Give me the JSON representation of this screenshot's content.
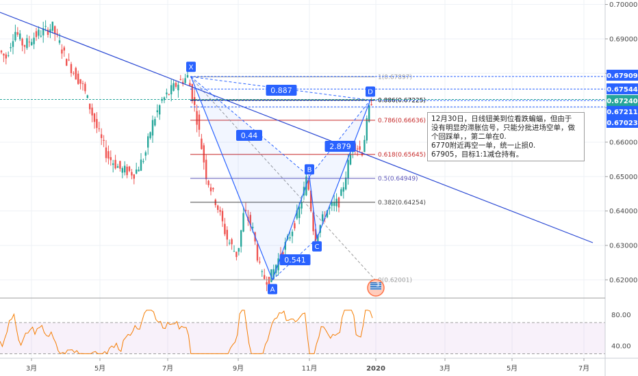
{
  "chart_data": [
    {
      "type": "candlestick",
      "title": "",
      "x_ticks": [
        "3月",
        "5月",
        "7月",
        "9月",
        "11月",
        "2020",
        "3月",
        "5月",
        "7月"
      ],
      "y_ticks": [
        "0.70000",
        "0.69000",
        "0.68000",
        "0.67000",
        "0.66000",
        "0.65000",
        "0.64000",
        "0.63000",
        "0.62000"
      ],
      "ylim": [
        0.6155,
        0.7013
      ],
      "pattern": {
        "name": "bat",
        "points": [
          {
            "label": "X",
            "price": 0.679
          },
          {
            "label": "A",
            "price": 0.62
          },
          {
            "label": "B",
            "price": 0.65
          },
          {
            "label": "C",
            "price": 0.632
          },
          {
            "label": "D",
            "price": 0.6722
          }
        ],
        "ratios": [
          "0.887",
          "0.44",
          "2.879",
          "0.541"
        ]
      },
      "fib_levels": [
        {
          "label": "1(0.67897)",
          "value": 0.67897,
          "color": "#9b9b9b"
        },
        {
          "label": "0.886(0.67225)",
          "value": 0.67225,
          "color": "#000000"
        },
        {
          "label": "0.786(0.66636)",
          "value": 0.66636,
          "color": "#c62828"
        },
        {
          "label": "0.618(0.65645)",
          "value": 0.65645,
          "color": "#c62828"
        },
        {
          "label": "0.5(0.64949)",
          "value": 0.64949,
          "color": "#5c55b8"
        },
        {
          "label": "0.382(0.64254)",
          "value": 0.64254,
          "color": "#444444"
        },
        {
          "label": "0(0.62001)",
          "value": 0.62001,
          "color": "#9b9b9b"
        }
      ],
      "price_tags": [
        {
          "label": "0.67909",
          "value": 0.67909,
          "bg": "#2962ff",
          "fg": "#ffffff"
        },
        {
          "label": "0.67544",
          "value": 0.67544,
          "bg": "#2962ff",
          "fg": "#ffffff"
        },
        {
          "label": "0.67240",
          "value": 0.6724,
          "bg": "#26a69a",
          "fg": "#ffffff"
        },
        {
          "label": "0.67211",
          "value": 0.67211,
          "bg": "#2962ff",
          "fg": "#ffffff"
        },
        {
          "label": "0.67023",
          "value": 0.67023,
          "bg": "#2962ff",
          "fg": "#ffffff"
        }
      ],
      "colors": {
        "up": "#26a69a",
        "down": "#ef5350",
        "pattern": "#2962ff",
        "trend": "#2847d3"
      },
      "grid": true
    },
    {
      "type": "line",
      "title": "",
      "series_name": "",
      "y_ticks": [
        "80.00",
        "40.00"
      ],
      "ylim": [
        26,
        98
      ],
      "bands": [
        70,
        30
      ],
      "color": "#f57c00"
    }
  ],
  "note": {
    "lines": [
      "12月30日，日线钮美到位看跌蝙蝠，但由于",
      "没有明显的滞胀信号，只能分批进场空单，做",
      "个回踩单，，第二单在0.",
      "6770附近再空一单，统一止损0.",
      "67905，目标1:1减仓持有。"
    ]
  },
  "marker": {
    "count": "3"
  }
}
